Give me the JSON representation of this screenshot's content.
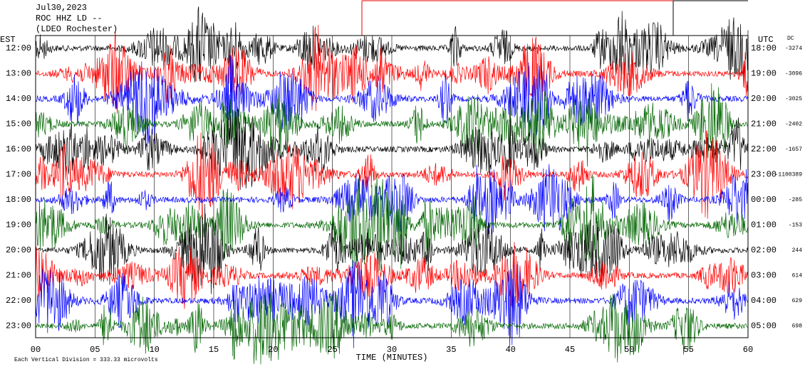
{
  "header": {
    "date": "Jul30,2023",
    "station": "ROC HHZ LD --",
    "network": "(LDEO Rochester)"
  },
  "left_axis": {
    "title": "EST",
    "labels": [
      "12:00",
      "13:00",
      "14:00",
      "15:00",
      "16:00",
      "17:00",
      "18:00",
      "19:00",
      "20:00",
      "21:00",
      "22:00",
      "23:00"
    ]
  },
  "right_axis": {
    "title": "UTC",
    "labels": [
      "18:00",
      "19:00",
      "20:00",
      "21:00",
      "22:00",
      "23:00",
      "00:00",
      "01:00",
      "02:00",
      "03:00",
      "04:00",
      "05:00"
    ]
  },
  "dc": {
    "title": "DC",
    "values": [
      "-3274",
      "-3096",
      "-3025",
      "-2402",
      "-1657",
      "-1100389",
      "-285",
      "-153",
      "244",
      "614",
      "629",
      "698"
    ]
  },
  "x_axis": {
    "title": "TIME (MINUTES)",
    "labels": [
      "00",
      "05",
      "10",
      "15",
      "20",
      "25",
      "30",
      "35",
      "40",
      "45",
      "50",
      "55",
      "60"
    ]
  },
  "footer": "Each Vertical Division = 333.33 microvolts"
}
